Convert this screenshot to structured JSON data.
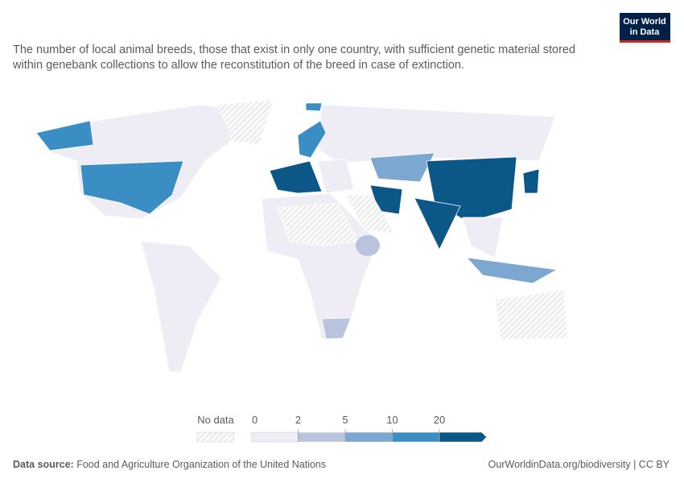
{
  "header": {
    "subtitle_lines": [
      "The number of local animal breeds, those that exist in only one country, with sufficient genetic material stored",
      "within genebank collections to allow the reconstitution of the breed in case of extinction."
    ],
    "logo_lines": [
      "Our World",
      "in Data"
    ]
  },
  "legend": {
    "no_data_label": "No data",
    "ticks": [
      0,
      2,
      5,
      10,
      20
    ],
    "colors": [
      "#eeedf5",
      "#b9c3dd",
      "#7ba7d1",
      "#3a8ec3",
      "#0b5788"
    ]
  },
  "footer": {
    "source_label": "Data source:",
    "source": "Food and Agriculture Organization of the United Nations",
    "url": "OurWorldinData.org/biodiversity | CC BY"
  }
}
